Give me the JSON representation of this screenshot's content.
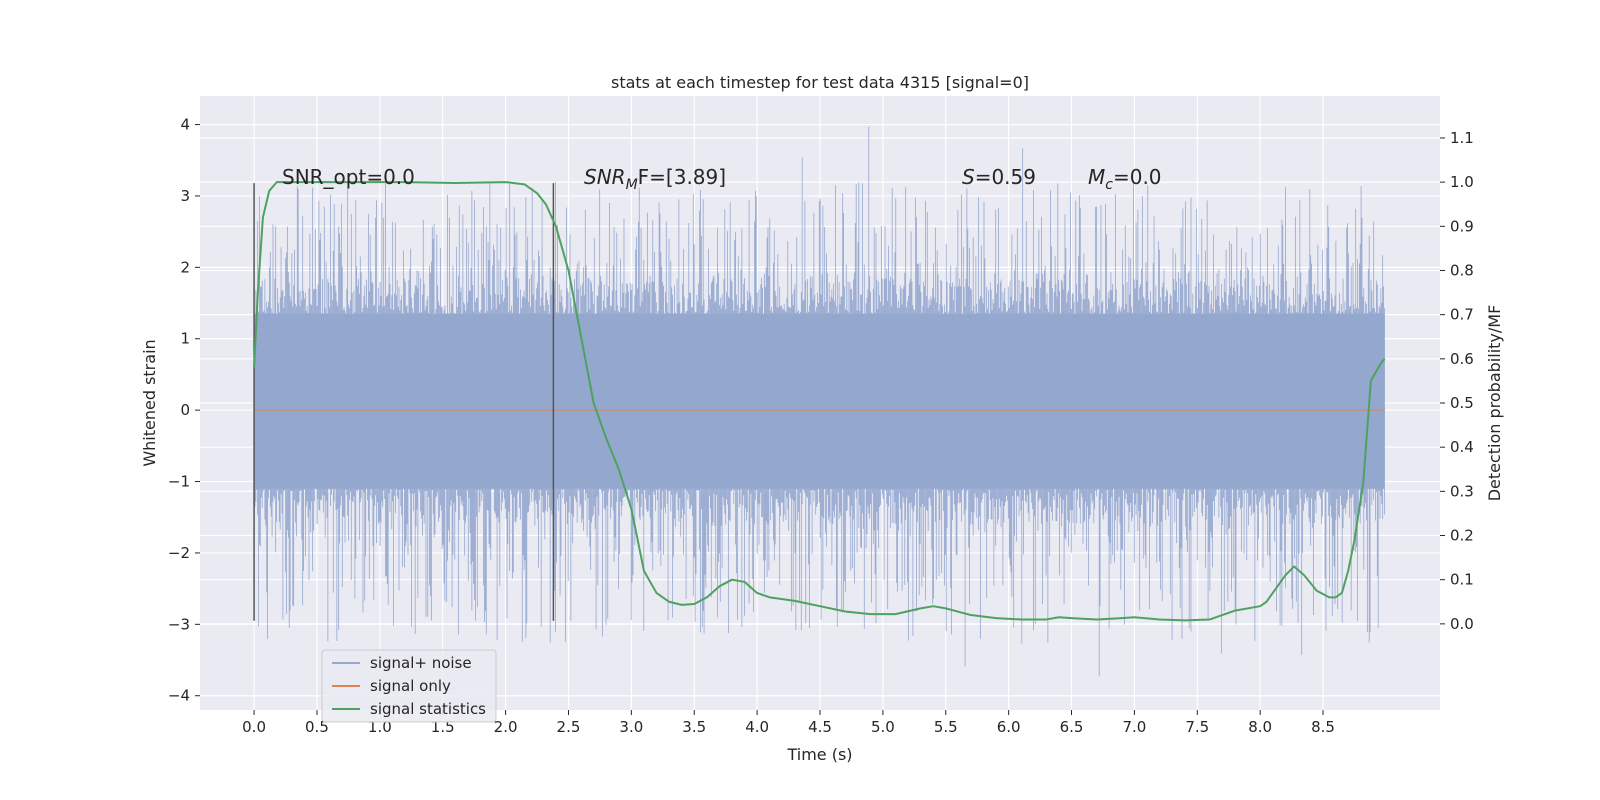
{
  "chart_data": {
    "type": "line",
    "title": "stats at each timestep for test data 4315 [signal=0]",
    "xlabel": "Time (s)",
    "ylabel_left": "Whitened strain",
    "ylabel_right": "Detection probability/MF",
    "xlim": [
      -0.43,
      9.43
    ],
    "ylim_left": [
      -4.2,
      4.4
    ],
    "ylim_right": [
      -0.195,
      1.195
    ],
    "x_ticks": [
      "0.0",
      "0.5",
      "1.0",
      "1.5",
      "2.0",
      "2.5",
      "3.0",
      "3.5",
      "4.0",
      "4.5",
      "5.0",
      "5.5",
      "6.0",
      "6.5",
      "7.0",
      "7.5",
      "8.0",
      "8.5"
    ],
    "y_left_ticks": [
      "4",
      "3",
      "2",
      "1",
      "0",
      "−1",
      "−2",
      "−3",
      "−4"
    ],
    "y_right_ticks": [
      "1.1",
      "1.0",
      "0.9",
      "0.8",
      "0.7",
      "0.6",
      "0.5",
      "0.4",
      "0.3",
      "0.2",
      "0.1",
      "0.0"
    ],
    "grid": true,
    "noise": {
      "x_start": 0.0,
      "x_end": 8.99,
      "band_low": -1.1,
      "band_high": 1.35,
      "spike_high_range": [
        1.5,
        3.2
      ],
      "spike_low_range": [
        -1.2,
        -3.3
      ],
      "max_value": 4.0,
      "min_value": -3.8
    },
    "vlines": [
      {
        "x": 0.0,
        "ymin": -2.95,
        "ymax": 3.18
      },
      {
        "x": 2.38,
        "ymin": -2.95,
        "ymax": 3.18
      }
    ],
    "series": [
      {
        "name": "signal+ noise",
        "color": "#95a8cf",
        "axis": "left"
      },
      {
        "name": "signal only",
        "color": "#dd8452",
        "axis": "left",
        "value": 0.0
      },
      {
        "name": "signal statistics",
        "color": "#4fa161",
        "axis": "right",
        "x": [
          0.0,
          0.03,
          0.07,
          0.12,
          0.18,
          0.25,
          0.35,
          0.5,
          0.8,
          1.2,
          1.6,
          2.0,
          2.15,
          2.25,
          2.32,
          2.4,
          2.5,
          2.6,
          2.7,
          2.8,
          2.9,
          3.0,
          3.1,
          3.2,
          3.3,
          3.4,
          3.5,
          3.6,
          3.7,
          3.8,
          3.9,
          4.0,
          4.1,
          4.2,
          4.3,
          4.5,
          4.7,
          4.9,
          5.1,
          5.3,
          5.4,
          5.5,
          5.7,
          5.9,
          6.1,
          6.3,
          6.4,
          6.5,
          6.7,
          6.9,
          7.0,
          7.2,
          7.4,
          7.6,
          7.8,
          8.0,
          8.05,
          8.1,
          8.2,
          8.27,
          8.35,
          8.45,
          8.55,
          8.6,
          8.65,
          8.7,
          8.75,
          8.82,
          8.88,
          8.92,
          8.96,
          8.99
        ],
        "y": [
          0.58,
          0.75,
          0.92,
          0.98,
          1.0,
          1.0,
          1.0,
          1.0,
          1.0,
          1.0,
          0.998,
          1.0,
          0.995,
          0.975,
          0.95,
          0.9,
          0.8,
          0.65,
          0.5,
          0.42,
          0.35,
          0.26,
          0.12,
          0.07,
          0.05,
          0.043,
          0.045,
          0.06,
          0.085,
          0.1,
          0.095,
          0.07,
          0.06,
          0.056,
          0.052,
          0.04,
          0.028,
          0.022,
          0.022,
          0.035,
          0.04,
          0.035,
          0.02,
          0.013,
          0.01,
          0.01,
          0.015,
          0.013,
          0.01,
          0.013,
          0.015,
          0.01,
          0.008,
          0.01,
          0.03,
          0.04,
          0.05,
          0.07,
          0.11,
          0.13,
          0.11,
          0.075,
          0.06,
          0.06,
          0.07,
          0.12,
          0.19,
          0.32,
          0.55,
          0.57,
          0.59,
          0.6
        ]
      }
    ],
    "annotations": [
      {
        "name": "snr-opt",
        "text": "SNR_opt=0.0"
      },
      {
        "name": "snr-mf",
        "base": "SNR",
        "sub": "M",
        "rest": "F=[3.89]"
      },
      {
        "name": "s-stat",
        "italic": "S",
        "rest": "=0.59"
      },
      {
        "name": "mc",
        "base": "M",
        "sub": "c",
        "rest": "=0.0"
      }
    ],
    "legend": {
      "placement": "lower-left",
      "entries": [
        "signal+ noise",
        "signal only",
        "signal statistics"
      ]
    }
  }
}
